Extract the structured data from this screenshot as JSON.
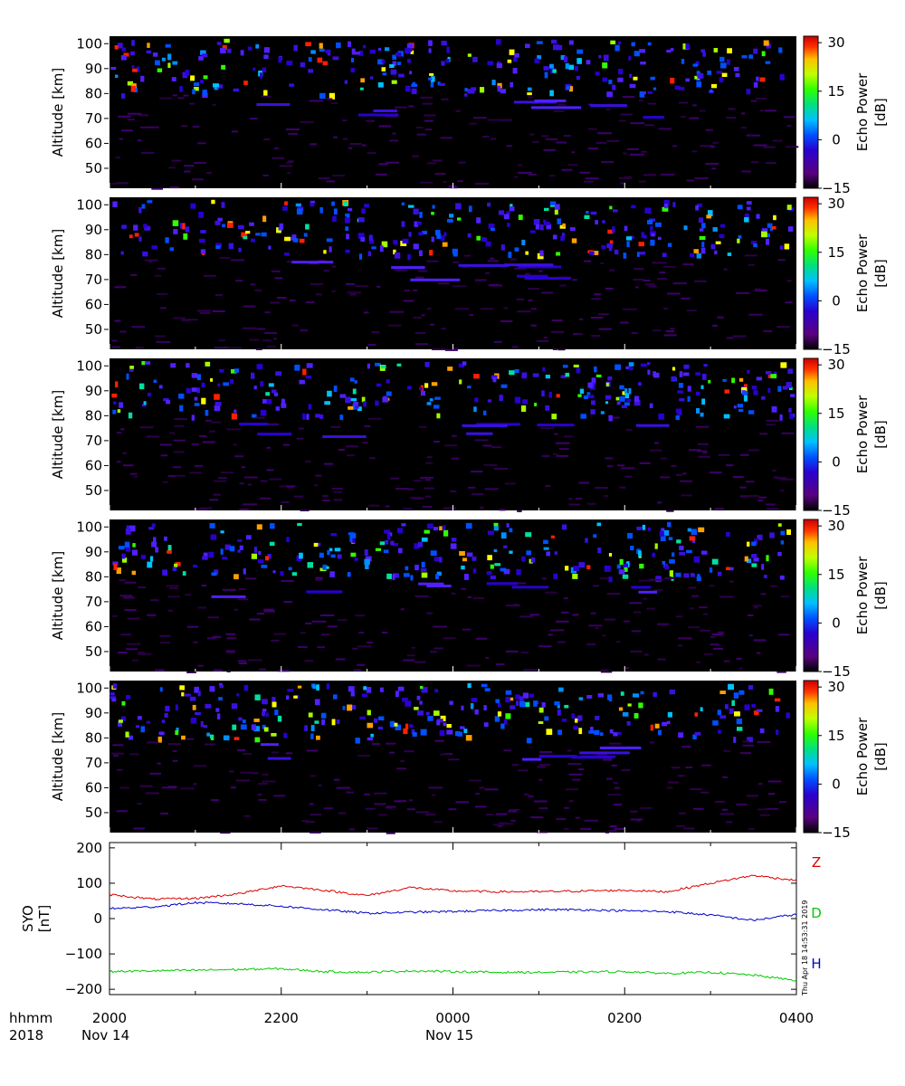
{
  "chart_data": [
    {
      "type": "heatmap",
      "ylabel": "Altitude [km]",
      "ylim": [
        42,
        103
      ],
      "yticks": [
        50,
        60,
        70,
        80,
        90,
        100
      ],
      "colorbar": {
        "label_line1": "Echo Power",
        "label_line2": "[dB]",
        "range": [
          -15,
          32
        ],
        "ticks": [
          30,
          15,
          0,
          -15
        ]
      }
    },
    {
      "type": "heatmap",
      "ylabel": "Altitude [km]",
      "ylim": [
        42,
        103
      ],
      "yticks": [
        50,
        60,
        70,
        80,
        90,
        100
      ],
      "colorbar": {
        "label_line1": "Echo Power",
        "label_line2": "[dB]",
        "range": [
          -15,
          32
        ],
        "ticks": [
          30,
          15,
          0,
          -15
        ]
      }
    },
    {
      "type": "heatmap",
      "ylabel": "Altitude [km]",
      "ylim": [
        42,
        103
      ],
      "yticks": [
        50,
        60,
        70,
        80,
        90,
        100
      ],
      "colorbar": {
        "label_line1": "Echo Power",
        "label_line2": "[dB]",
        "range": [
          -15,
          32
        ],
        "ticks": [
          30,
          15,
          0,
          -15
        ]
      }
    },
    {
      "type": "heatmap",
      "ylabel": "Altitude [km]",
      "ylim": [
        42,
        103
      ],
      "yticks": [
        50,
        60,
        70,
        80,
        90,
        100
      ],
      "colorbar": {
        "label_line1": "Echo Power",
        "label_line2": "[dB]",
        "range": [
          -15,
          32
        ],
        "ticks": [
          30,
          15,
          0,
          -15
        ]
      }
    },
    {
      "type": "heatmap",
      "ylabel": "Altitude [km]",
      "ylim": [
        42,
        103
      ],
      "yticks": [
        50,
        60,
        70,
        80,
        90,
        100
      ],
      "colorbar": {
        "label_line1": "Echo Power",
        "label_line2": "[dB]",
        "range": [
          -15,
          32
        ],
        "ticks": [
          30,
          15,
          0,
          -15
        ]
      }
    },
    {
      "type": "line",
      "ylabel_line1": "SYO",
      "ylabel_line2": "[nT]",
      "ylim": [
        -215,
        215
      ],
      "yticks": [
        200,
        100,
        0,
        -100,
        -200
      ],
      "x_hours": [
        0,
        0.5,
        1,
        1.5,
        2,
        2.5,
        3,
        3.5,
        4,
        4.5,
        5,
        5.5,
        6,
        6.5,
        7,
        7.5,
        8
      ],
      "series": [
        {
          "name": "Z",
          "color": "#dd0000",
          "values": [
            68,
            55,
            57,
            70,
            93,
            80,
            65,
            88,
            78,
            76,
            76,
            78,
            80,
            76,
            100,
            122,
            108
          ]
        },
        {
          "name": "D",
          "color": "#00cc00",
          "values": [
            -150,
            -148,
            -146,
            -144,
            -142,
            -150,
            -152,
            -148,
            -150,
            -152,
            -152,
            -151,
            -150,
            -155,
            -152,
            -160,
            -175
          ]
        },
        {
          "name": "H",
          "color": "#0000cc",
          "values": [
            28,
            33,
            45,
            42,
            35,
            25,
            15,
            18,
            20,
            23,
            25,
            25,
            22,
            20,
            10,
            -5,
            12
          ]
        }
      ]
    }
  ],
  "xaxis": {
    "row1_label": "hhmm",
    "row2_label": "2018",
    "ticks": [
      "2000",
      "2200",
      "0000",
      "0200",
      "0400"
    ],
    "dates": [
      "Nov 14",
      "Nov 15"
    ]
  },
  "timestamp": "Thu Apr 18 14:53:31 2019",
  "colors": {
    "panel_bg": "#000000",
    "z": "#dd0000",
    "d": "#00cc00",
    "h": "#0000cc"
  }
}
